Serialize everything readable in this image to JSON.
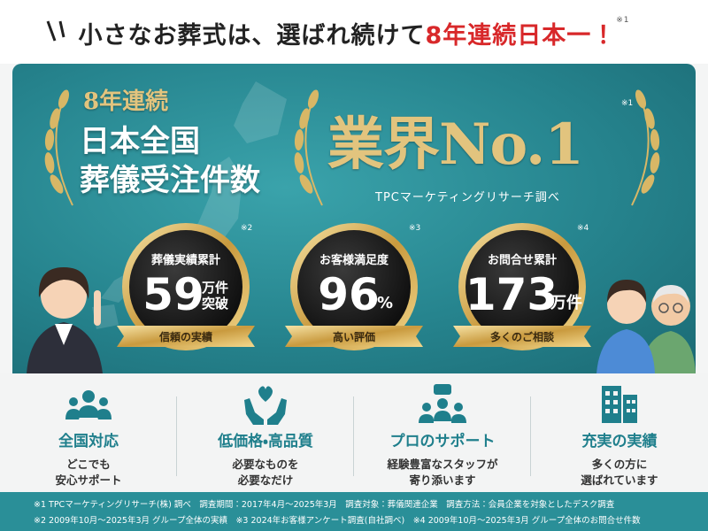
{
  "header": {
    "title_prefix": "小さなお葬式は、選ばれ続けて",
    "title_highlight": "8年連続日本一！",
    "note": "※1"
  },
  "hero": {
    "line1": "8年連続",
    "line2": "日本全国",
    "line3": "葬儀受注件数",
    "award": "業界No.1",
    "award_note": "※1",
    "source": "TPCマーケティングリサーチ調べ"
  },
  "badges": [
    {
      "note": "※2",
      "label": "葬儀実績累計",
      "value": 59,
      "unit": [
        "万件",
        "突破"
      ],
      "caption": "信頼の実績"
    },
    {
      "note": "※3",
      "label": "お客様満足度",
      "value": 96,
      "unit": [
        "%"
      ],
      "caption": "高い評価"
    },
    {
      "note": "※4",
      "label": "お問合せ累計",
      "value": 173,
      "unit": [
        "万件"
      ],
      "caption": "多くのご相談"
    }
  ],
  "features": [
    {
      "title": "全国対応",
      "desc": [
        "どこでも",
        "安心サポート"
      ]
    },
    {
      "title": "低価格・高品質",
      "desc": [
        "必要なものを",
        "必要なだけ"
      ]
    },
    {
      "title": "プロのサポート",
      "desc": [
        "経験豊富なスタッフが",
        "寄り添います"
      ]
    },
    {
      "title": "充実の実績",
      "desc": [
        "多くの方に",
        "選ばれています"
      ]
    }
  ],
  "footnotes": [
    "※1 TPCマーケティングリサーチ(株) 調べ　調査期間：2017年4月～2025年3月　調査対象：葬儀関連企業　調査方法：会員企業を対象としたデスク調査",
    "※2 2009年10月～2025年3月 グループ全体の実績　※3 2024年お客様アンケート調査(自社調べ)　※4 2009年10月～2025年3月 グループ全体のお問合せ件数"
  ]
}
